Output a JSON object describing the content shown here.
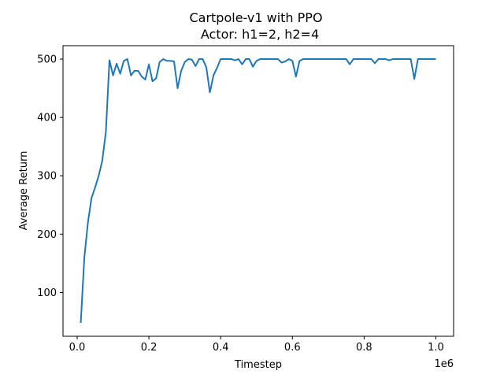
{
  "chart_data": {
    "type": "line",
    "title": "Cartpole-v1 with PPO",
    "subtitle": "Actor: h1=2, h2=4",
    "xlabel": "Timestep",
    "ylabel": "Average Return",
    "x_offset_label": "1e6",
    "xlim": [
      -0.0395,
      1.0495
    ],
    "ylim": [
      25,
      523
    ],
    "x_ticks": [
      0.0,
      0.2,
      0.4,
      0.6,
      0.8,
      1.0
    ],
    "x_tick_labels": [
      "0.0",
      "0.2",
      "0.4",
      "0.6",
      "0.8",
      "1.0"
    ],
    "y_ticks": [
      100,
      200,
      300,
      400,
      500
    ],
    "y_tick_labels": [
      "100",
      "200",
      "300",
      "400",
      "500"
    ],
    "grid": false,
    "line_color": "#1f77b4",
    "series": [
      {
        "x": [
          0.01,
          0.02,
          0.03,
          0.04,
          0.05,
          0.06,
          0.07,
          0.08,
          0.09,
          0.1,
          0.11,
          0.12,
          0.13,
          0.14,
          0.15,
          0.16,
          0.17,
          0.18,
          0.19,
          0.2,
          0.21,
          0.22,
          0.23,
          0.24,
          0.25,
          0.26,
          0.27,
          0.28,
          0.29,
          0.3,
          0.31,
          0.32,
          0.33,
          0.34,
          0.35,
          0.36,
          0.37,
          0.38,
          0.39,
          0.4,
          0.41,
          0.42,
          0.43,
          0.44,
          0.45,
          0.46,
          0.47,
          0.48,
          0.49,
          0.5,
          0.51,
          0.52,
          0.53,
          0.54,
          0.55,
          0.56,
          0.57,
          0.58,
          0.59,
          0.6,
          0.61,
          0.62,
          0.63,
          0.64,
          0.65,
          0.66,
          0.67,
          0.68,
          0.69,
          0.7,
          0.71,
          0.72,
          0.73,
          0.74,
          0.75,
          0.76,
          0.77,
          0.78,
          0.79,
          0.8,
          0.81,
          0.82,
          0.83,
          0.84,
          0.85,
          0.86,
          0.87,
          0.88,
          0.89,
          0.9,
          0.91,
          0.92,
          0.93,
          0.94,
          0.95,
          0.96,
          0.97,
          0.98,
          0.99,
          1.0
        ],
        "values": [
          48,
          160,
          220,
          262,
          280,
          300,
          326,
          375,
          498,
          472,
          492,
          475,
          497,
          500,
          472,
          480,
          480,
          470,
          465,
          491,
          462,
          467,
          495,
          500,
          497,
          497,
          496,
          450,
          480,
          495,
          500,
          499,
          488,
          500,
          500,
          486,
          443,
          472,
          485,
          500,
          500,
          500,
          500,
          498,
          500,
          491,
          500,
          500,
          487,
          497,
          500,
          500,
          500,
          500,
          500,
          500,
          494,
          496,
          500,
          497,
          470,
          497,
          500,
          500,
          500,
          500,
          500,
          500,
          500,
          500,
          500,
          500,
          500,
          500,
          500,
          491,
          500,
          500,
          500,
          500,
          500,
          500,
          493,
          500,
          500,
          500,
          498,
          500,
          500,
          500,
          500,
          500,
          500,
          466,
          500,
          500,
          500,
          500,
          500,
          500
        ]
      }
    ]
  }
}
